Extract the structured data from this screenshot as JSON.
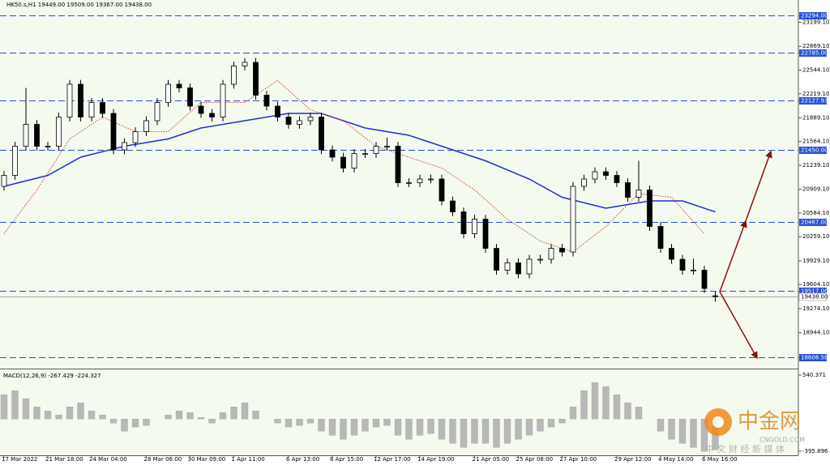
{
  "chart_data": [
    {
      "type": "candlestick",
      "title": "HK50.s,H1  19449.00 19509.00 19367.00 19438.00",
      "categories": [
        "17 Mar 2022",
        null,
        null,
        null,
        "21 Mar 18:00",
        null,
        null,
        null,
        "24 Mar 04:00",
        null,
        null,
        null,
        null,
        "28 Mar 06:00",
        null,
        null,
        null,
        "30 Mar 09:00",
        null,
        null,
        null,
        "1 Apr 11:00",
        null,
        null,
        null,
        null,
        "6 Apr 13:00",
        null,
        null,
        null,
        "8 Apr 15:00",
        null,
        null,
        null,
        "12 Apr 17:00",
        null,
        null,
        null,
        "14 Apr 19:00",
        null,
        null,
        null,
        null,
        "21 Apr 05:00",
        null,
        null,
        null,
        "25 Apr 08:00",
        null,
        null,
        null,
        "27 Apr 10:00",
        null,
        null,
        null,
        null,
        "29 Apr 12:00",
        null,
        null,
        null,
        "4 May 14:00",
        null,
        null,
        null,
        "6 May 16:00",
        null
      ],
      "candles": [
        [
          20950,
          21160,
          20890,
          21100
        ],
        [
          21100,
          21560,
          21040,
          21500
        ],
        [
          21500,
          22300,
          21440,
          21800
        ],
        [
          21800,
          21860,
          21440,
          21500
        ],
        [
          21500,
          21560,
          21440,
          21500
        ],
        [
          21500,
          21960,
          21440,
          21900
        ],
        [
          21900,
          22410,
          21840,
          22350
        ],
        [
          22350,
          22410,
          21840,
          21900
        ],
        [
          21900,
          22160,
          21840,
          22100
        ],
        [
          22100,
          22160,
          21890,
          21950
        ],
        [
          21950,
          22010,
          21390,
          21450
        ],
        [
          21450,
          21610,
          21390,
          21550
        ],
        [
          21550,
          21760,
          21490,
          21700
        ],
        [
          21700,
          21910,
          21640,
          21850
        ],
        [
          21850,
          22160,
          21790,
          22100
        ],
        [
          22100,
          22410,
          22040,
          22350
        ],
        [
          22350,
          22410,
          22240,
          22300
        ],
        [
          22300,
          22360,
          21990,
          22050
        ],
        [
          22050,
          22110,
          21890,
          21950
        ],
        [
          21950,
          22010,
          21840,
          21900
        ],
        [
          21900,
          22410,
          21840,
          22350
        ],
        [
          22350,
          22660,
          22290,
          22600
        ],
        [
          22600,
          22710,
          22540,
          22650
        ],
        [
          22650,
          22710,
          22140,
          22200
        ],
        [
          22200,
          22260,
          21990,
          22050
        ],
        [
          22050,
          22110,
          21840,
          21900
        ],
        [
          21900,
          21960,
          21740,
          21800
        ],
        [
          21800,
          21910,
          21740,
          21850
        ],
        [
          21850,
          21960,
          21790,
          21900
        ],
        [
          21900,
          21960,
          21390,
          21450
        ],
        [
          21450,
          21510,
          21290,
          21350
        ],
        [
          21350,
          21410,
          21140,
          21200
        ],
        [
          21200,
          21460,
          21140,
          21400
        ],
        [
          21400,
          21460,
          21340,
          21400
        ],
        [
          21400,
          21560,
          21340,
          21500
        ],
        [
          21500,
          21620,
          21440,
          21500
        ],
        [
          21500,
          21560,
          20940,
          21000
        ],
        [
          21000,
          21060,
          20940,
          21000
        ],
        [
          21000,
          21110,
          20940,
          21050
        ],
        [
          21050,
          21110,
          20990,
          21050
        ],
        [
          21050,
          21110,
          20690,
          20750
        ],
        [
          20750,
          20810,
          20540,
          20600
        ],
        [
          20600,
          20660,
          20240,
          20300
        ],
        [
          20300,
          20560,
          20240,
          20500
        ],
        [
          20500,
          20560,
          20040,
          20100
        ],
        [
          20100,
          20160,
          19740,
          19800
        ],
        [
          19800,
          19960,
          19740,
          19900
        ],
        [
          19900,
          19960,
          19690,
          19750
        ],
        [
          19750,
          20010,
          19690,
          19950
        ],
        [
          19950,
          20010,
          19890,
          19950
        ],
        [
          19950,
          20160,
          19890,
          20100
        ],
        [
          20100,
          20160,
          19990,
          20050
        ],
        [
          20050,
          21010,
          19990,
          20950
        ],
        [
          20950,
          21110,
          20890,
          21050
        ],
        [
          21050,
          21210,
          20990,
          21150
        ],
        [
          21150,
          21210,
          21040,
          21100
        ],
        [
          21100,
          21160,
          20940,
          21000
        ],
        [
          21000,
          21060,
          20740,
          20800
        ],
        [
          20800,
          21300,
          20740,
          20900
        ],
        [
          20900,
          20960,
          20340,
          20400
        ],
        [
          20400,
          20460,
          20040,
          20100
        ],
        [
          20100,
          20160,
          19890,
          19950
        ],
        [
          19950,
          20010,
          19740,
          19800
        ],
        [
          19800,
          19960,
          19740,
          19800
        ],
        [
          19800,
          19860,
          19490,
          19550
        ],
        [
          19449,
          19509,
          19367,
          19438
        ]
      ],
      "overlays": [
        {
          "color": "#1f2fd6",
          "style": "solid",
          "x": [
            0,
            4,
            7,
            11,
            15,
            18,
            22,
            26,
            29,
            33,
            37,
            40,
            44,
            48,
            51,
            55,
            59,
            62,
            65
          ],
          "values": [
            20950,
            21100,
            21350,
            21500,
            21600,
            21750,
            21850,
            21950,
            21950,
            21750,
            21650,
            21500,
            21300,
            21050,
            20800,
            20650,
            20750,
            20750,
            20600
          ]
        },
        {
          "color": "#d94040",
          "style": "dotted",
          "x": [
            0,
            3,
            6,
            9,
            12,
            15,
            18,
            22,
            25,
            28,
            31,
            34,
            37,
            40,
            43,
            46,
            49,
            52,
            55,
            58,
            61,
            64
          ],
          "values": [
            20300,
            20900,
            21600,
            21900,
            21700,
            21700,
            22100,
            22100,
            22400,
            22000,
            21850,
            21500,
            21350,
            21200,
            20900,
            20500,
            20200,
            20050,
            20400,
            20850,
            20800,
            20300
          ]
        }
      ],
      "levels": [
        {
          "value": 23294,
          "label": "23294.00"
        },
        {
          "value": 22785,
          "label": "22785.00"
        },
        {
          "value": 22127.93,
          "label": "22127.93"
        },
        {
          "value": 21450,
          "label": "21450.00"
        },
        {
          "value": 20467,
          "label": "20467.00"
        },
        {
          "value": 19517,
          "label": "19517.00"
        },
        {
          "value": 18606.58,
          "label": "18606.58"
        }
      ],
      "current_price": {
        "value": 19438,
        "label": "19438.00"
      },
      "ylim": [
        18451,
        23505
      ],
      "yticks": [
        {
          "value": 23199.1,
          "label": "23199.10"
        },
        {
          "value": 22869.1,
          "label": "22869.10"
        },
        {
          "value": 22544.1,
          "label": "22544.10"
        },
        {
          "value": 22219.1,
          "label": "22219.10"
        },
        {
          "value": 21889.1,
          "label": "21889.10"
        },
        {
          "value": 21564.1,
          "label": "21564.10"
        },
        {
          "value": 21239.1,
          "label": "21239.10"
        },
        {
          "value": 20909.1,
          "label": "20909.10"
        },
        {
          "value": 20584.1,
          "label": "20584.10"
        },
        {
          "value": 20259.1,
          "label": "20259.10"
        },
        {
          "value": 19929.1,
          "label": "19929.10"
        },
        {
          "value": 19604.1,
          "label": "19604.10"
        },
        {
          "value": 19274.1,
          "label": "19274.10"
        },
        {
          "value": 18944.1,
          "label": "18944.10"
        }
      ],
      "level_color": "#2a4fd8"
    },
    {
      "type": "bar",
      "title": "MACD(12,26,9) -267.429 -224.327",
      "values": [
        300,
        350,
        250,
        150,
        100,
        50,
        150,
        200,
        100,
        50,
        -50,
        -150,
        -100,
        -80,
        0,
        50,
        100,
        80,
        20,
        -50,
        80,
        150,
        200,
        100,
        0,
        -50,
        -100,
        -80,
        -50,
        -150,
        -200,
        -250,
        -200,
        -150,
        -100,
        -80,
        -200,
        -250,
        -200,
        -180,
        -250,
        -300,
        -350,
        -300,
        -300,
        -350,
        -300,
        -250,
        -200,
        -150,
        -100,
        -50,
        150,
        350,
        450,
        400,
        300,
        200,
        150,
        0,
        -150,
        -250,
        -300,
        -350,
        -400,
        -380
      ],
      "color": "#b8b8b8",
      "ylim": [
        -446,
        600
      ],
      "yticks": [
        540.371,
        -395.896
      ]
    }
  ],
  "watermark": {
    "logo": "中金网",
    "site": "CNGOLD.COM",
    "tagline": "中 文 财 经 新 媒 体"
  }
}
